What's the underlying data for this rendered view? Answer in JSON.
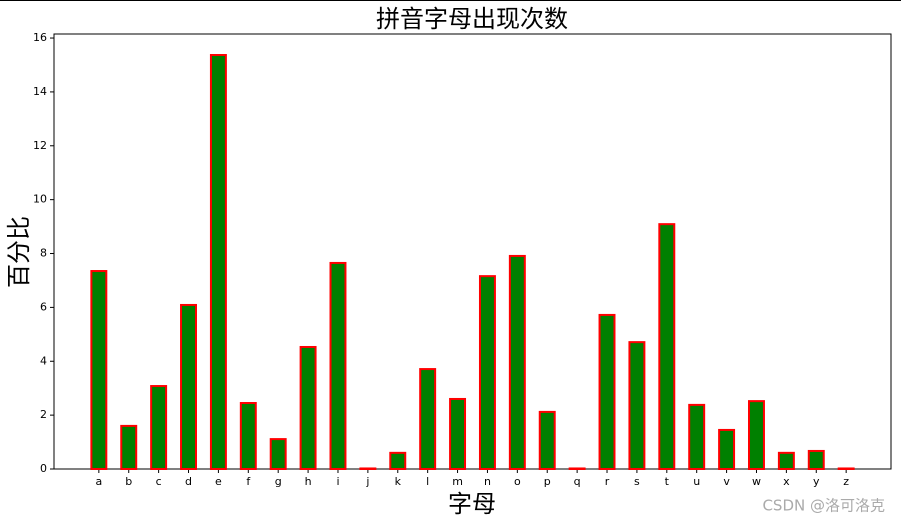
{
  "chart_data": {
    "type": "bar",
    "title": "拼音字母出现次数",
    "xlabel": "字母",
    "ylabel": "百分比",
    "categories": [
      "a",
      "b",
      "c",
      "d",
      "e",
      "f",
      "g",
      "h",
      "i",
      "j",
      "k",
      "l",
      "m",
      "n",
      "o",
      "p",
      "q",
      "r",
      "s",
      "t",
      "u",
      "v",
      "w",
      "x",
      "y",
      "z"
    ],
    "values": [
      7.35,
      1.6,
      3.08,
      6.09,
      15.37,
      2.45,
      1.11,
      4.53,
      7.65,
      0.02,
      0.6,
      3.71,
      2.6,
      7.16,
      7.91,
      2.12,
      0.02,
      5.72,
      4.71,
      9.09,
      2.38,
      1.45,
      2.52,
      0.6,
      0.67,
      0.02
    ],
    "color": "green",
    "edgecolor": "red",
    "ylim": [
      0,
      16.15
    ],
    "yticks": [
      0,
      2,
      4,
      6,
      8,
      10,
      12,
      14,
      16
    ]
  },
  "watermark": "CSDN @洛可洛克"
}
